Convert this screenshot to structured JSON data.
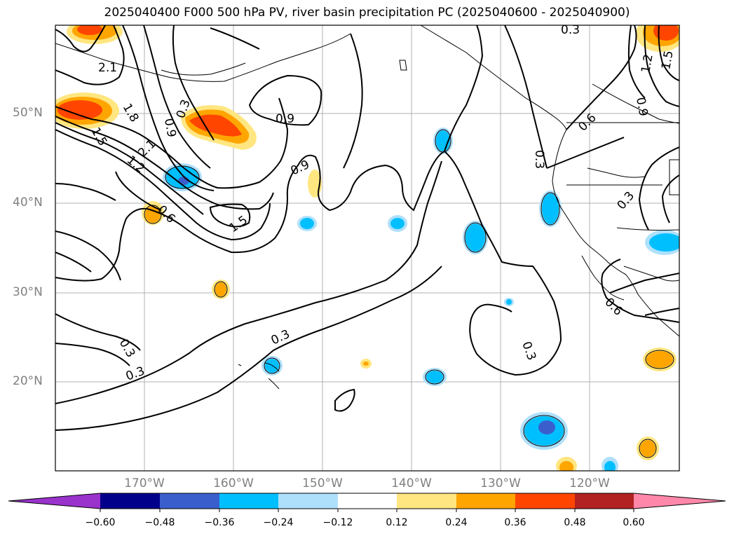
{
  "title": "2025040400 F000 500 hPa PV, river basin precipitation PC (2025040600 - 2025040900)",
  "map": {
    "lat_labels": [
      "50°N",
      "40°N",
      "30°N",
      "20°N"
    ],
    "lon_labels": [
      "170°W",
      "160°W",
      "150°W",
      "140°W",
      "130°W",
      "120°W"
    ],
    "contour_labels": [
      "2.1",
      "1.8",
      "1.5",
      "2.1",
      "1.2",
      "0.9",
      "0.3",
      "0.9",
      "0.9",
      "0.6",
      "1.5",
      "0.3",
      "0.3",
      "0.3",
      "0.3",
      "0.3",
      "0.6",
      "0.3",
      "0.3",
      "0.6",
      "1.2",
      "1.5",
      "0.9"
    ]
  },
  "colorbar": {
    "ticks": [
      "−0.60",
      "−0.48",
      "−0.36",
      "−0.24",
      "−0.12",
      "0.12",
      "0.24",
      "0.36",
      "0.48",
      "0.60"
    ],
    "colors": [
      "#9933cc",
      "#00008b",
      "#3a5fcd",
      "#00bfff",
      "#afe0fb",
      "#ffffff",
      "#ffe680",
      "#ffa500",
      "#ff4500",
      "#b22222",
      "#ff88aa"
    ]
  }
}
